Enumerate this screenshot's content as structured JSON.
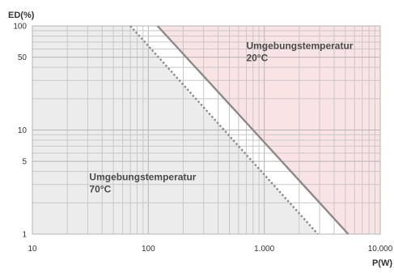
{
  "chart_data": {
    "type": "line",
    "x_scale": "log",
    "y_scale": "log",
    "xlim": [
      10,
      10000
    ],
    "ylim": [
      1,
      100
    ],
    "ylabel": "ED(%)",
    "xlabel": "P(W)",
    "x_ticks": [
      {
        "value": 10,
        "label": "10"
      },
      {
        "value": 100,
        "label": "100"
      },
      {
        "value": 1000,
        "label": "1.000"
      },
      {
        "value": 10000,
        "label": "10.000"
      }
    ],
    "y_ticks": [
      {
        "value": 1,
        "label": "1"
      },
      {
        "value": 5,
        "label": "5"
      },
      {
        "value": 10,
        "label": "10"
      },
      {
        "value": 50,
        "label": "50"
      },
      {
        "value": 100,
        "label": "100"
      }
    ],
    "grid": true,
    "series": [
      {
        "name": "Umgebungstemperatur 20°C",
        "style": "solid",
        "color": "#8a8a8a",
        "points": [
          [
            120,
            100
          ],
          [
            800,
            10
          ],
          [
            5300,
            1
          ]
        ]
      },
      {
        "name": "Umgebungstemperatur 70°C",
        "style": "dotted",
        "color": "#8a8a8a",
        "points": [
          [
            70,
            100
          ],
          [
            2900,
            1
          ]
        ]
      }
    ],
    "annotations": [
      {
        "line1": "Umgebungstemperatur",
        "line2": "20°C",
        "x": 700,
        "y": 60
      },
      {
        "line1": "Umgebungstemperatur",
        "line2": "70°C",
        "x": 31,
        "y": 3.3
      }
    ],
    "regions": {
      "above_20C_color": "#fae3e5",
      "below_70C_color": "#ececec",
      "between_color": "#ffffff"
    }
  }
}
